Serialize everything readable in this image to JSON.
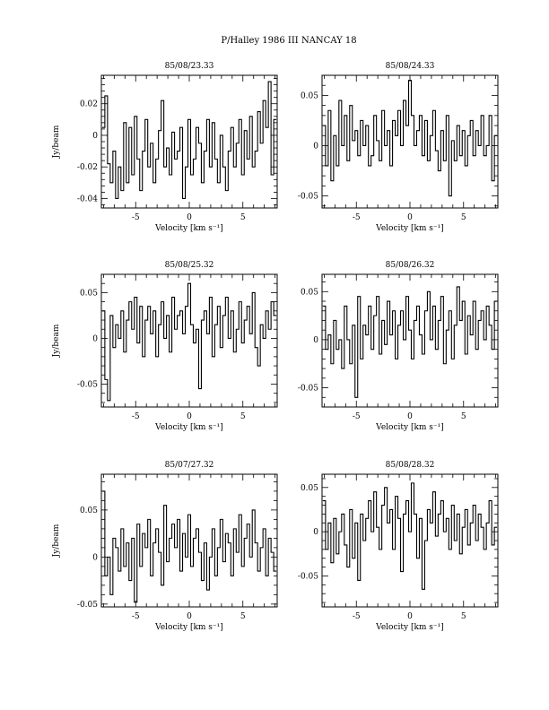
{
  "figure_title": "P/Halley 1986 III   NANCAY     18",
  "chart_data": [
    {
      "type": "line",
      "title": "85/08/23.33",
      "xlabel": "Velocity [km s⁻¹]",
      "ylabel": "Jy/beam",
      "xlim": [
        -8.2,
        8.2
      ],
      "ylim": [
        -0.046,
        0.038
      ],
      "xticks": [
        -5,
        0,
        5
      ],
      "yticks": [
        -0.04,
        -0.02,
        0,
        0.02
      ],
      "ytick_labels": [
        "-0.04",
        "-0.02",
        "0",
        "0.02"
      ],
      "grid": false,
      "x": [
        -8.0,
        -7.75,
        -7.5,
        -7.25,
        -7.0,
        -6.75,
        -6.5,
        -6.25,
        -6.0,
        -5.75,
        -5.5,
        -5.25,
        -5.0,
        -4.75,
        -4.5,
        -4.25,
        -4.0,
        -3.75,
        -3.5,
        -3.25,
        -3.0,
        -2.75,
        -2.5,
        -2.25,
        -2.0,
        -1.75,
        -1.5,
        -1.25,
        -1.0,
        -0.75,
        -0.5,
        -0.25,
        0.0,
        0.25,
        0.5,
        0.75,
        1.0,
        1.25,
        1.5,
        1.75,
        2.0,
        2.25,
        2.5,
        2.75,
        3.0,
        3.25,
        3.5,
        3.75,
        4.0,
        4.25,
        4.5,
        4.75,
        5.0,
        5.25,
        5.5,
        5.75,
        6.0,
        6.25,
        6.5,
        6.75,
        7.0,
        7.25,
        7.5,
        7.75,
        8.0
      ],
      "y": [
        0.005,
        0.025,
        -0.018,
        -0.03,
        -0.01,
        -0.04,
        -0.02,
        -0.035,
        0.008,
        -0.03,
        0.005,
        -0.025,
        0.012,
        -0.015,
        -0.035,
        -0.01,
        0.01,
        -0.02,
        -0.005,
        -0.03,
        -0.015,
        0.003,
        0.022,
        -0.02,
        -0.008,
        -0.025,
        0.002,
        -0.015,
        -0.01,
        0.005,
        -0.04,
        -0.02,
        0.01,
        -0.025,
        -0.015,
        0.005,
        -0.005,
        -0.03,
        -0.01,
        0.01,
        -0.02,
        0.008,
        -0.015,
        -0.03,
        0.0,
        -0.02,
        -0.035,
        -0.01,
        0.005,
        -0.02,
        -0.005,
        0.01,
        -0.025,
        0.003,
        -0.015,
        0.012,
        -0.02,
        -0.01,
        0.015,
        -0.005,
        0.022,
        0.005,
        0.034,
        -0.025,
        0.01
      ]
    },
    {
      "type": "line",
      "title": "85/08/24.33",
      "xlabel": "Velocity [km s⁻¹]",
      "ylabel": "",
      "xlim": [
        -8.2,
        8.2
      ],
      "ylim": [
        -0.062,
        0.07
      ],
      "xticks": [
        -5,
        0,
        5
      ],
      "yticks": [
        -0.05,
        0,
        0.05
      ],
      "ytick_labels": [
        "-0.05",
        "0",
        "0.05"
      ],
      "grid": false,
      "x": [
        -8.0,
        -7.75,
        -7.5,
        -7.25,
        -7.0,
        -6.75,
        -6.5,
        -6.25,
        -6.0,
        -5.75,
        -5.5,
        -5.25,
        -5.0,
        -4.75,
        -4.5,
        -4.25,
        -4.0,
        -3.75,
        -3.5,
        -3.25,
        -3.0,
        -2.75,
        -2.5,
        -2.25,
        -2.0,
        -1.75,
        -1.5,
        -1.25,
        -1.0,
        -0.75,
        -0.5,
        -0.25,
        0.0,
        0.25,
        0.5,
        0.75,
        1.0,
        1.25,
        1.5,
        1.75,
        2.0,
        2.25,
        2.5,
        2.75,
        3.0,
        3.25,
        3.5,
        3.75,
        4.0,
        4.25,
        4.5,
        4.75,
        5.0,
        5.25,
        5.5,
        5.75,
        6.0,
        6.25,
        6.5,
        6.75,
        7.0,
        7.25,
        7.5,
        7.75,
        8.0
      ],
      "y": [
        0.02,
        -0.02,
        0.035,
        -0.035,
        0.01,
        -0.02,
        0.045,
        0.0,
        0.03,
        -0.015,
        0.04,
        0.005,
        0.015,
        -0.01,
        0.025,
        0.0,
        0.02,
        -0.02,
        -0.01,
        0.03,
        0.005,
        -0.015,
        0.035,
        0.0,
        0.015,
        -0.02,
        0.025,
        0.01,
        0.035,
        0.0,
        0.045,
        0.02,
        0.065,
        0.03,
        0.0,
        0.015,
        0.03,
        -0.01,
        0.025,
        -0.015,
        0.01,
        0.035,
        -0.005,
        -0.025,
        0.015,
        -0.015,
        0.03,
        -0.05,
        0.005,
        -0.015,
        0.02,
        -0.01,
        0.015,
        -0.02,
        0.01,
        0.025,
        -0.01,
        0.015,
        0.0,
        0.03,
        -0.01,
        0.0,
        0.03,
        -0.035,
        0.01
      ]
    },
    {
      "type": "line",
      "title": "85/08/25.32",
      "xlabel": "Velocity [km s⁻¹]",
      "ylabel": "Jy/beam",
      "xlim": [
        -8.2,
        8.2
      ],
      "ylim": [
        -0.075,
        0.07
      ],
      "xticks": [
        -5,
        0,
        5
      ],
      "yticks": [
        -0.05,
        0,
        0.05
      ],
      "ytick_labels": [
        "-0.05",
        "0",
        "0.05"
      ],
      "grid": false,
      "x": [
        -8.0,
        -7.75,
        -7.5,
        -7.25,
        -7.0,
        -6.75,
        -6.5,
        -6.25,
        -6.0,
        -5.75,
        -5.5,
        -5.25,
        -5.0,
        -4.75,
        -4.5,
        -4.25,
        -4.0,
        -3.75,
        -3.5,
        -3.25,
        -3.0,
        -2.75,
        -2.5,
        -2.25,
        -2.0,
        -1.75,
        -1.5,
        -1.25,
        -1.0,
        -0.75,
        -0.5,
        -0.25,
        0.0,
        0.25,
        0.5,
        0.75,
        1.0,
        1.25,
        1.5,
        1.75,
        2.0,
        2.25,
        2.5,
        2.75,
        3.0,
        3.25,
        3.5,
        3.75,
        4.0,
        4.25,
        4.5,
        4.75,
        5.0,
        5.25,
        5.5,
        5.75,
        6.0,
        6.25,
        6.5,
        6.75,
        7.0,
        7.25,
        7.5,
        7.75,
        8.0
      ],
      "y": [
        0.03,
        -0.045,
        -0.068,
        0.025,
        -0.01,
        0.015,
        0.0,
        0.03,
        -0.015,
        0.02,
        0.04,
        0.01,
        0.045,
        -0.005,
        0.035,
        -0.02,
        0.02,
        0.035,
        0.005,
        0.03,
        -0.02,
        0.015,
        0.04,
        0.0,
        0.025,
        -0.015,
        0.045,
        0.01,
        0.025,
        0.03,
        0.005,
        0.035,
        0.06,
        0.015,
        -0.005,
        0.01,
        -0.055,
        0.02,
        0.03,
        0.005,
        0.045,
        -0.02,
        0.015,
        0.035,
        -0.01,
        0.025,
        0.045,
        0.0,
        0.03,
        -0.015,
        0.01,
        0.04,
        -0.005,
        0.02,
        0.035,
        0.005,
        0.05,
        -0.01,
        -0.03,
        0.015,
        0.0,
        0.03,
        0.01,
        0.04,
        0.025
      ]
    },
    {
      "type": "line",
      "title": "85/08/26.32",
      "xlabel": "Velocity [km s⁻¹]",
      "ylabel": "",
      "xlim": [
        -8.2,
        8.2
      ],
      "ylim": [
        -0.07,
        0.068
      ],
      "xticks": [
        -5,
        0,
        5
      ],
      "yticks": [
        -0.05,
        0,
        0.05
      ],
      "ytick_labels": [
        "-0.05",
        "0",
        "0.05"
      ],
      "grid": false,
      "x": [
        -8.0,
        -7.75,
        -7.5,
        -7.25,
        -7.0,
        -6.75,
        -6.5,
        -6.25,
        -6.0,
        -5.75,
        -5.5,
        -5.25,
        -5.0,
        -4.75,
        -4.5,
        -4.25,
        -4.0,
        -3.75,
        -3.5,
        -3.25,
        -3.0,
        -2.75,
        -2.5,
        -2.25,
        -2.0,
        -1.75,
        -1.5,
        -1.25,
        -1.0,
        -0.75,
        -0.5,
        -0.25,
        0.0,
        0.25,
        0.5,
        0.75,
        1.0,
        1.25,
        1.5,
        1.75,
        2.0,
        2.25,
        2.5,
        2.75,
        3.0,
        3.25,
        3.5,
        3.75,
        4.0,
        4.25,
        4.5,
        4.75,
        5.0,
        5.25,
        5.5,
        5.75,
        6.0,
        6.25,
        6.5,
        6.75,
        7.0,
        7.25,
        7.5,
        7.75,
        8.0
      ],
      "y": [
        0.035,
        -0.01,
        0.005,
        -0.025,
        0.02,
        -0.01,
        0.0,
        -0.03,
        0.035,
        0.0,
        -0.025,
        0.015,
        -0.06,
        0.045,
        -0.02,
        0.015,
        0.005,
        0.035,
        -0.01,
        0.025,
        0.045,
        -0.015,
        0.02,
        -0.005,
        0.04,
        0.005,
        0.03,
        -0.02,
        0.015,
        0.03,
        0.0,
        0.045,
        0.01,
        -0.02,
        0.02,
        0.035,
        0.005,
        -0.015,
        0.03,
        0.05,
        0.0,
        0.035,
        -0.01,
        0.02,
        0.045,
        -0.025,
        0.01,
        0.03,
        -0.02,
        0.015,
        0.055,
        0.02,
        0.04,
        -0.015,
        0.025,
        0.005,
        0.04,
        -0.01,
        0.02,
        0.03,
        0.0,
        0.035,
        0.015,
        -0.01,
        0.04
      ]
    },
    {
      "type": "line",
      "title": "85/07/27.32",
      "xlabel": "Velocity [km s⁻¹]",
      "ylabel": "Jy/beam",
      "xlim": [
        -8.2,
        8.2
      ],
      "ylim": [
        -0.053,
        0.088
      ],
      "xticks": [
        -5,
        0,
        5
      ],
      "yticks": [
        -0.05,
        0,
        0.05
      ],
      "ytick_labels": [
        "-0.05",
        "0",
        "0.05"
      ],
      "grid": false,
      "x": [
        -8.0,
        -7.75,
        -7.5,
        -7.25,
        -7.0,
        -6.75,
        -6.5,
        -6.25,
        -6.0,
        -5.75,
        -5.5,
        -5.25,
        -5.0,
        -4.75,
        -4.5,
        -4.25,
        -4.0,
        -3.75,
        -3.5,
        -3.25,
        -3.0,
        -2.75,
        -2.5,
        -2.25,
        -2.0,
        -1.75,
        -1.5,
        -1.25,
        -1.0,
        -0.75,
        -0.5,
        -0.25,
        0.0,
        0.25,
        0.5,
        0.75,
        1.0,
        1.25,
        1.5,
        1.75,
        2.0,
        2.25,
        2.5,
        2.75,
        3.0,
        3.25,
        3.5,
        3.75,
        4.0,
        4.25,
        4.5,
        4.75,
        5.0,
        5.25,
        5.5,
        5.75,
        6.0,
        6.25,
        6.5,
        6.75,
        7.0,
        7.25,
        7.5,
        7.75,
        8.0
      ],
      "y": [
        0.07,
        -0.02,
        0.0,
        -0.04,
        0.02,
        0.01,
        -0.015,
        0.03,
        -0.01,
        0.015,
        -0.025,
        0.02,
        -0.048,
        0.035,
        -0.01,
        0.025,
        0.01,
        0.04,
        -0.02,
        0.015,
        0.03,
        0.005,
        -0.03,
        0.055,
        -0.005,
        0.02,
        0.035,
        0.01,
        0.04,
        -0.015,
        0.025,
        0.0,
        0.045,
        -0.01,
        0.02,
        0.03,
        0.005,
        -0.025,
        0.015,
        -0.035,
        0.0,
        0.03,
        -0.02,
        0.01,
        0.04,
        -0.005,
        0.025,
        0.015,
        -0.02,
        0.03,
        0.005,
        0.045,
        -0.01,
        0.02,
        0.035,
        0.0,
        0.05,
        0.015,
        -0.015,
        0.01,
        0.03,
        -0.02,
        0.02,
        0.005,
        -0.015
      ]
    },
    {
      "type": "line",
      "title": "85/08/28.32",
      "xlabel": "Velocity [km s⁻¹]",
      "ylabel": "",
      "xlim": [
        -8.2,
        8.2
      ],
      "ylim": [
        -0.085,
        0.065
      ],
      "xticks": [
        -5,
        0,
        5
      ],
      "yticks": [
        -0.05,
        0,
        0.05
      ],
      "ytick_labels": [
        "-0.05",
        "0",
        "0.05"
      ],
      "grid": false,
      "x": [
        -8.0,
        -7.75,
        -7.5,
        -7.25,
        -7.0,
        -6.75,
        -6.5,
        -6.25,
        -6.0,
        -5.75,
        -5.5,
        -5.25,
        -5.0,
        -4.75,
        -4.5,
        -4.25,
        -4.0,
        -3.75,
        -3.5,
        -3.25,
        -3.0,
        -2.75,
        -2.5,
        -2.25,
        -2.0,
        -1.75,
        -1.5,
        -1.25,
        -1.0,
        -0.75,
        -0.5,
        -0.25,
        0.0,
        0.25,
        0.5,
        0.75,
        1.0,
        1.25,
        1.5,
        1.75,
        2.0,
        2.25,
        2.5,
        2.75,
        3.0,
        3.25,
        3.5,
        3.75,
        4.0,
        4.25,
        4.5,
        4.75,
        5.0,
        5.25,
        5.5,
        5.75,
        6.0,
        6.25,
        6.5,
        6.75,
        7.0,
        7.25,
        7.5,
        7.75,
        8.0
      ],
      "y": [
        0.035,
        -0.02,
        0.01,
        -0.035,
        0.015,
        -0.025,
        0.0,
        0.02,
        -0.015,
        -0.04,
        0.025,
        -0.03,
        0.01,
        -0.055,
        0.02,
        -0.01,
        0.015,
        0.035,
        0.0,
        0.045,
        0.005,
        -0.02,
        0.03,
        0.05,
        0.01,
        0.025,
        -0.02,
        0.04,
        0.015,
        -0.045,
        0.02,
        0.035,
        0.0,
        0.055,
        0.02,
        -0.03,
        0.015,
        -0.065,
        -0.01,
        0.025,
        0.01,
        0.045,
        -0.005,
        0.02,
        0.035,
        0.0,
        0.015,
        -0.02,
        0.03,
        -0.01,
        0.02,
        -0.025,
        0.005,
        0.025,
        -0.015,
        0.01,
        0.03,
        -0.01,
        0.02,
        0.005,
        -0.02,
        0.01,
        0.035,
        -0.015,
        0.005
      ]
    }
  ]
}
